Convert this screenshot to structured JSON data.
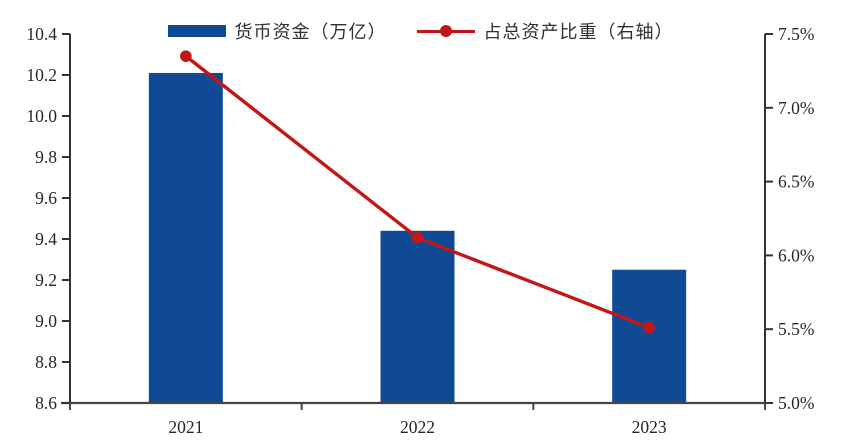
{
  "legend": {
    "items": [
      {
        "label": "货币资金（万亿）",
        "marker": "bar-swatch"
      },
      {
        "label": "占总资产比重（右轴）",
        "marker": "line-dot-swatch"
      }
    ]
  },
  "colors": {
    "bar": "#114A94",
    "line": "#C21717",
    "axis": "#454545",
    "tick_text": "#262626"
  },
  "chart_data": {
    "type": "combo-bar-line",
    "categories": [
      "2021",
      "2022",
      "2023"
    ],
    "series": [
      {
        "name": "货币资金（万亿）",
        "type": "bar",
        "axis": "left",
        "values": [
          10.21,
          9.44,
          9.25
        ]
      },
      {
        "name": "占总资产比重（右轴）",
        "type": "line",
        "axis": "right",
        "values": [
          7.35,
          6.12,
          5.51
        ]
      }
    ],
    "left_axis": {
      "min": 8.6,
      "max": 10.4,
      "step": 0.2,
      "tick_labels": [
        "10.4",
        "10.2",
        "10.0",
        "9.8",
        "9.6",
        "9.4",
        "9.2",
        "9.0",
        "8.8",
        "8.6"
      ]
    },
    "right_axis": {
      "min": 5.0,
      "max": 7.5,
      "step": 0.5,
      "tick_labels": [
        "7.5%",
        "7.0%",
        "6.5%",
        "6.0%",
        "5.5%",
        "5.0%"
      ]
    },
    "grid": false,
    "legend_position": "top"
  }
}
